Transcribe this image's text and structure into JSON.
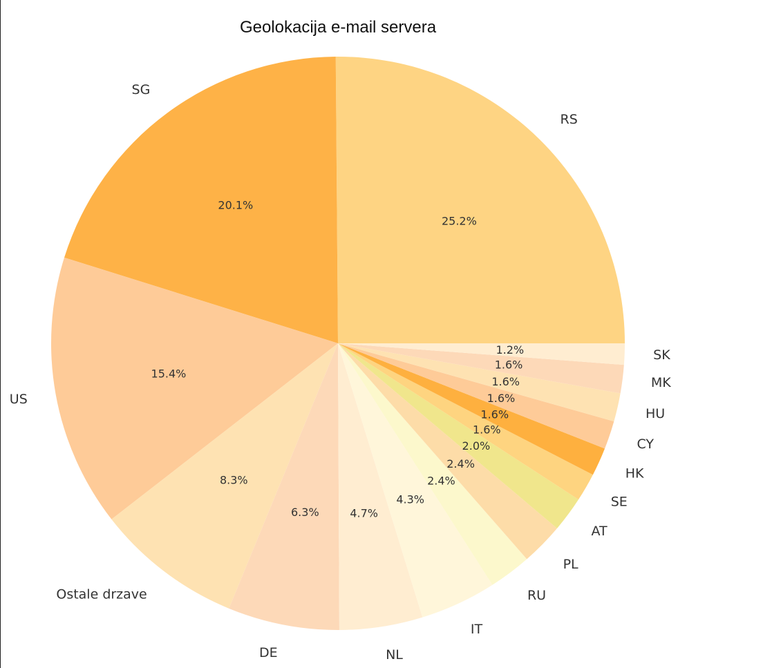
{
  "chart_data": {
    "type": "pie",
    "title": "Geolokacija e-mail servera",
    "start_angle_deg": 0,
    "direction": "counterclockwise",
    "slices": [
      {
        "label": "RS",
        "value": 25.2,
        "pct_label": "25.2%",
        "color": "#FED483"
      },
      {
        "label": "SG",
        "value": 20.1,
        "pct_label": "20.1%",
        "color": "#FEB247"
      },
      {
        "label": "US",
        "value": 15.4,
        "pct_label": "15.4%",
        "color": "#FECB98"
      },
      {
        "label": "Ostale drzave",
        "value": 8.3,
        "pct_label": "8.3%",
        "color": "#FEE2B2"
      },
      {
        "label": "DE",
        "value": 6.3,
        "pct_label": "6.3%",
        "color": "#FDD9B8"
      },
      {
        "label": "NL",
        "value": 4.7,
        "pct_label": "4.7%",
        "color": "#FFEDD1"
      },
      {
        "label": "IT",
        "value": 4.3,
        "pct_label": "4.3%",
        "color": "#FFF6DA"
      },
      {
        "label": "RU",
        "value": 2.4,
        "pct_label": "2.4%",
        "color": "#FCF8CC"
      },
      {
        "label": "PL",
        "value": 2.4,
        "pct_label": "2.4%",
        "color": "#FDDCA8"
      },
      {
        "label": "AT",
        "value": 2.0,
        "pct_label": "2.0%",
        "color": "#F0E68C"
      },
      {
        "label": "SE",
        "value": 1.6,
        "pct_label": "1.6%",
        "color": "#FED480"
      },
      {
        "label": "HK",
        "value": 1.6,
        "pct_label": "1.6%",
        "color": "#FEB03F"
      },
      {
        "label": "CY",
        "value": 1.6,
        "pct_label": "1.6%",
        "color": "#FECB98"
      },
      {
        "label": "HU",
        "value": 1.6,
        "pct_label": "1.6%",
        "color": "#FEE2B2"
      },
      {
        "label": "MK",
        "value": 1.6,
        "pct_label": "1.6%",
        "color": "#FDD9B8"
      },
      {
        "label": "SK",
        "value": 1.2,
        "pct_label": "1.2%",
        "color": "#FFEDD1"
      }
    ]
  }
}
